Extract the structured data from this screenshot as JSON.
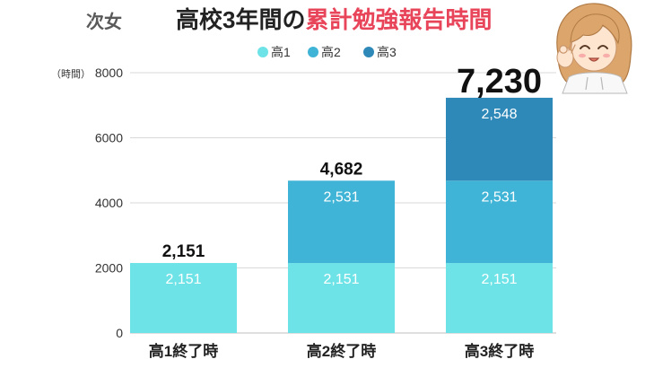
{
  "illustration": "girl-ok-sign-illustration",
  "chart_data": {
    "type": "bar",
    "stacked": true,
    "title_parts": [
      {
        "text": "次女",
        "color": "#5a5a5a"
      },
      {
        "text": "高校3年間の",
        "color": "#222222"
      },
      {
        "text": "累計勉強報告時間",
        "color": "#e8455a"
      }
    ],
    "categories": [
      "高1終了時",
      "高2終了時",
      "高3終了時"
    ],
    "series": [
      {
        "name": "高1",
        "color": "#6ee3e7",
        "values": [
          2151,
          2151,
          2151
        ]
      },
      {
        "name": "高2",
        "color": "#3fb4d6",
        "values": [
          0,
          2531,
          2531
        ]
      },
      {
        "name": "高3",
        "color": "#2e89b8",
        "values": [
          0,
          0,
          2548
        ]
      }
    ],
    "totals": [
      2151,
      4682,
      7230
    ],
    "ylabel": "（時間）",
    "ylim": [
      0,
      8000
    ],
    "yticks": [
      0,
      2000,
      4000,
      6000,
      8000
    ],
    "legend_position": "top-center",
    "grid": true,
    "data_labels": true
  }
}
